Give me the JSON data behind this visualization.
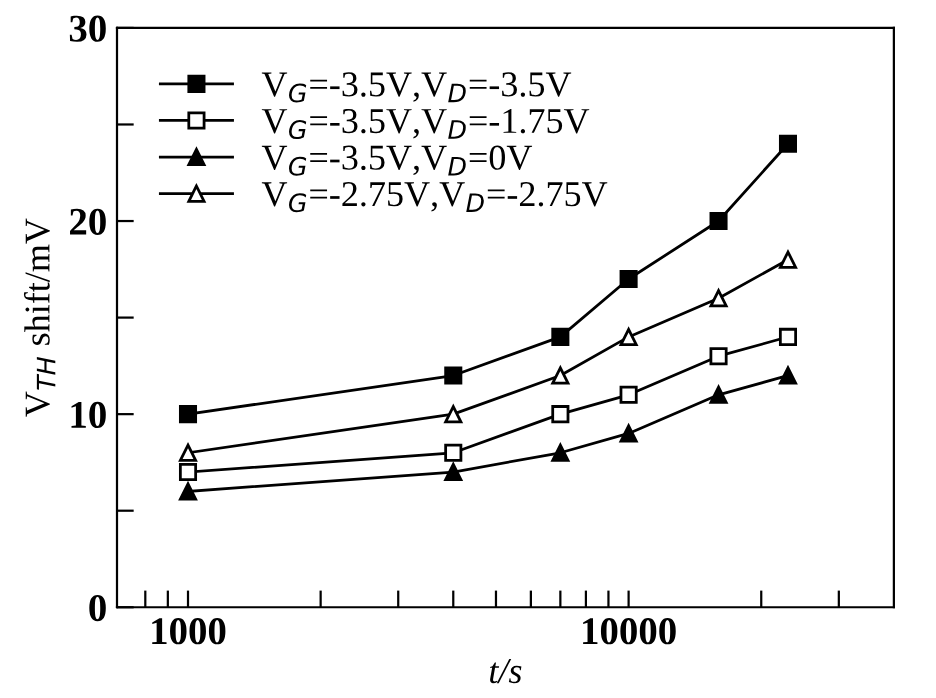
{
  "chart_data": {
    "type": "line",
    "xlabel": "t/s",
    "ylabel": "V$_{TH}$ shift/mV",
    "log": "x",
    "x": [
      1000,
      4000,
      7000,
      10000,
      16000,
      23000
    ],
    "xlim": [
      690,
      40000
    ],
    "xticks": [
      {
        "value": 800,
        "label": null
      },
      {
        "value": 900,
        "label": null
      },
      1000,
      {
        "value": 2000,
        "label": null
      },
      {
        "value": 3000,
        "label": null
      },
      {
        "value": 4000,
        "label": null
      },
      {
        "value": 5000,
        "label": null
      },
      {
        "value": 6000,
        "label": null
      },
      {
        "value": 7000,
        "label": null
      },
      {
        "value": 8000,
        "label": null
      },
      {
        "value": 9000,
        "label": null
      },
      10000,
      {
        "value": 20000,
        "label": null
      },
      {
        "value": 30000,
        "label": null
      }
    ],
    "ylim": [
      0,
      30
    ],
    "yticks": [
      0,
      {
        "value": 5,
        "label": null
      },
      10,
      {
        "value": 15,
        "label": null
      },
      20,
      {
        "value": 25,
        "label": null
      },
      30
    ],
    "grid": false,
    "legend": "top left",
    "line_style": "solid",
    "series": [
      {
        "name": "V$_{G}$=-3.5V,V$_{D}$=-3.5V",
        "color": "#000000",
        "marker": "square",
        "values": [
          10,
          12,
          14,
          17,
          20,
          24
        ]
      },
      {
        "name": "V$_{G}$=-3.5V,V$_{D}$=-1.75V",
        "color": "#000000",
        "marker": "square",
        "values": [
          7,
          8,
          10,
          11,
          13,
          14
        ]
      },
      {
        "name": "V$_{G}$=-3.5V,V$_{D}$=0V",
        "color": "#000000",
        "marker": "triangle",
        "values": [
          6,
          7,
          8,
          9,
          11,
          12
        ]
      },
      {
        "name": "V$_{G}$=-2.75V,V$_{D}$=-2.75V",
        "color": "#000000",
        "marker": "triangle",
        "values": [
          8,
          10,
          12,
          14,
          16,
          18
        ]
      }
    ]
  }
}
